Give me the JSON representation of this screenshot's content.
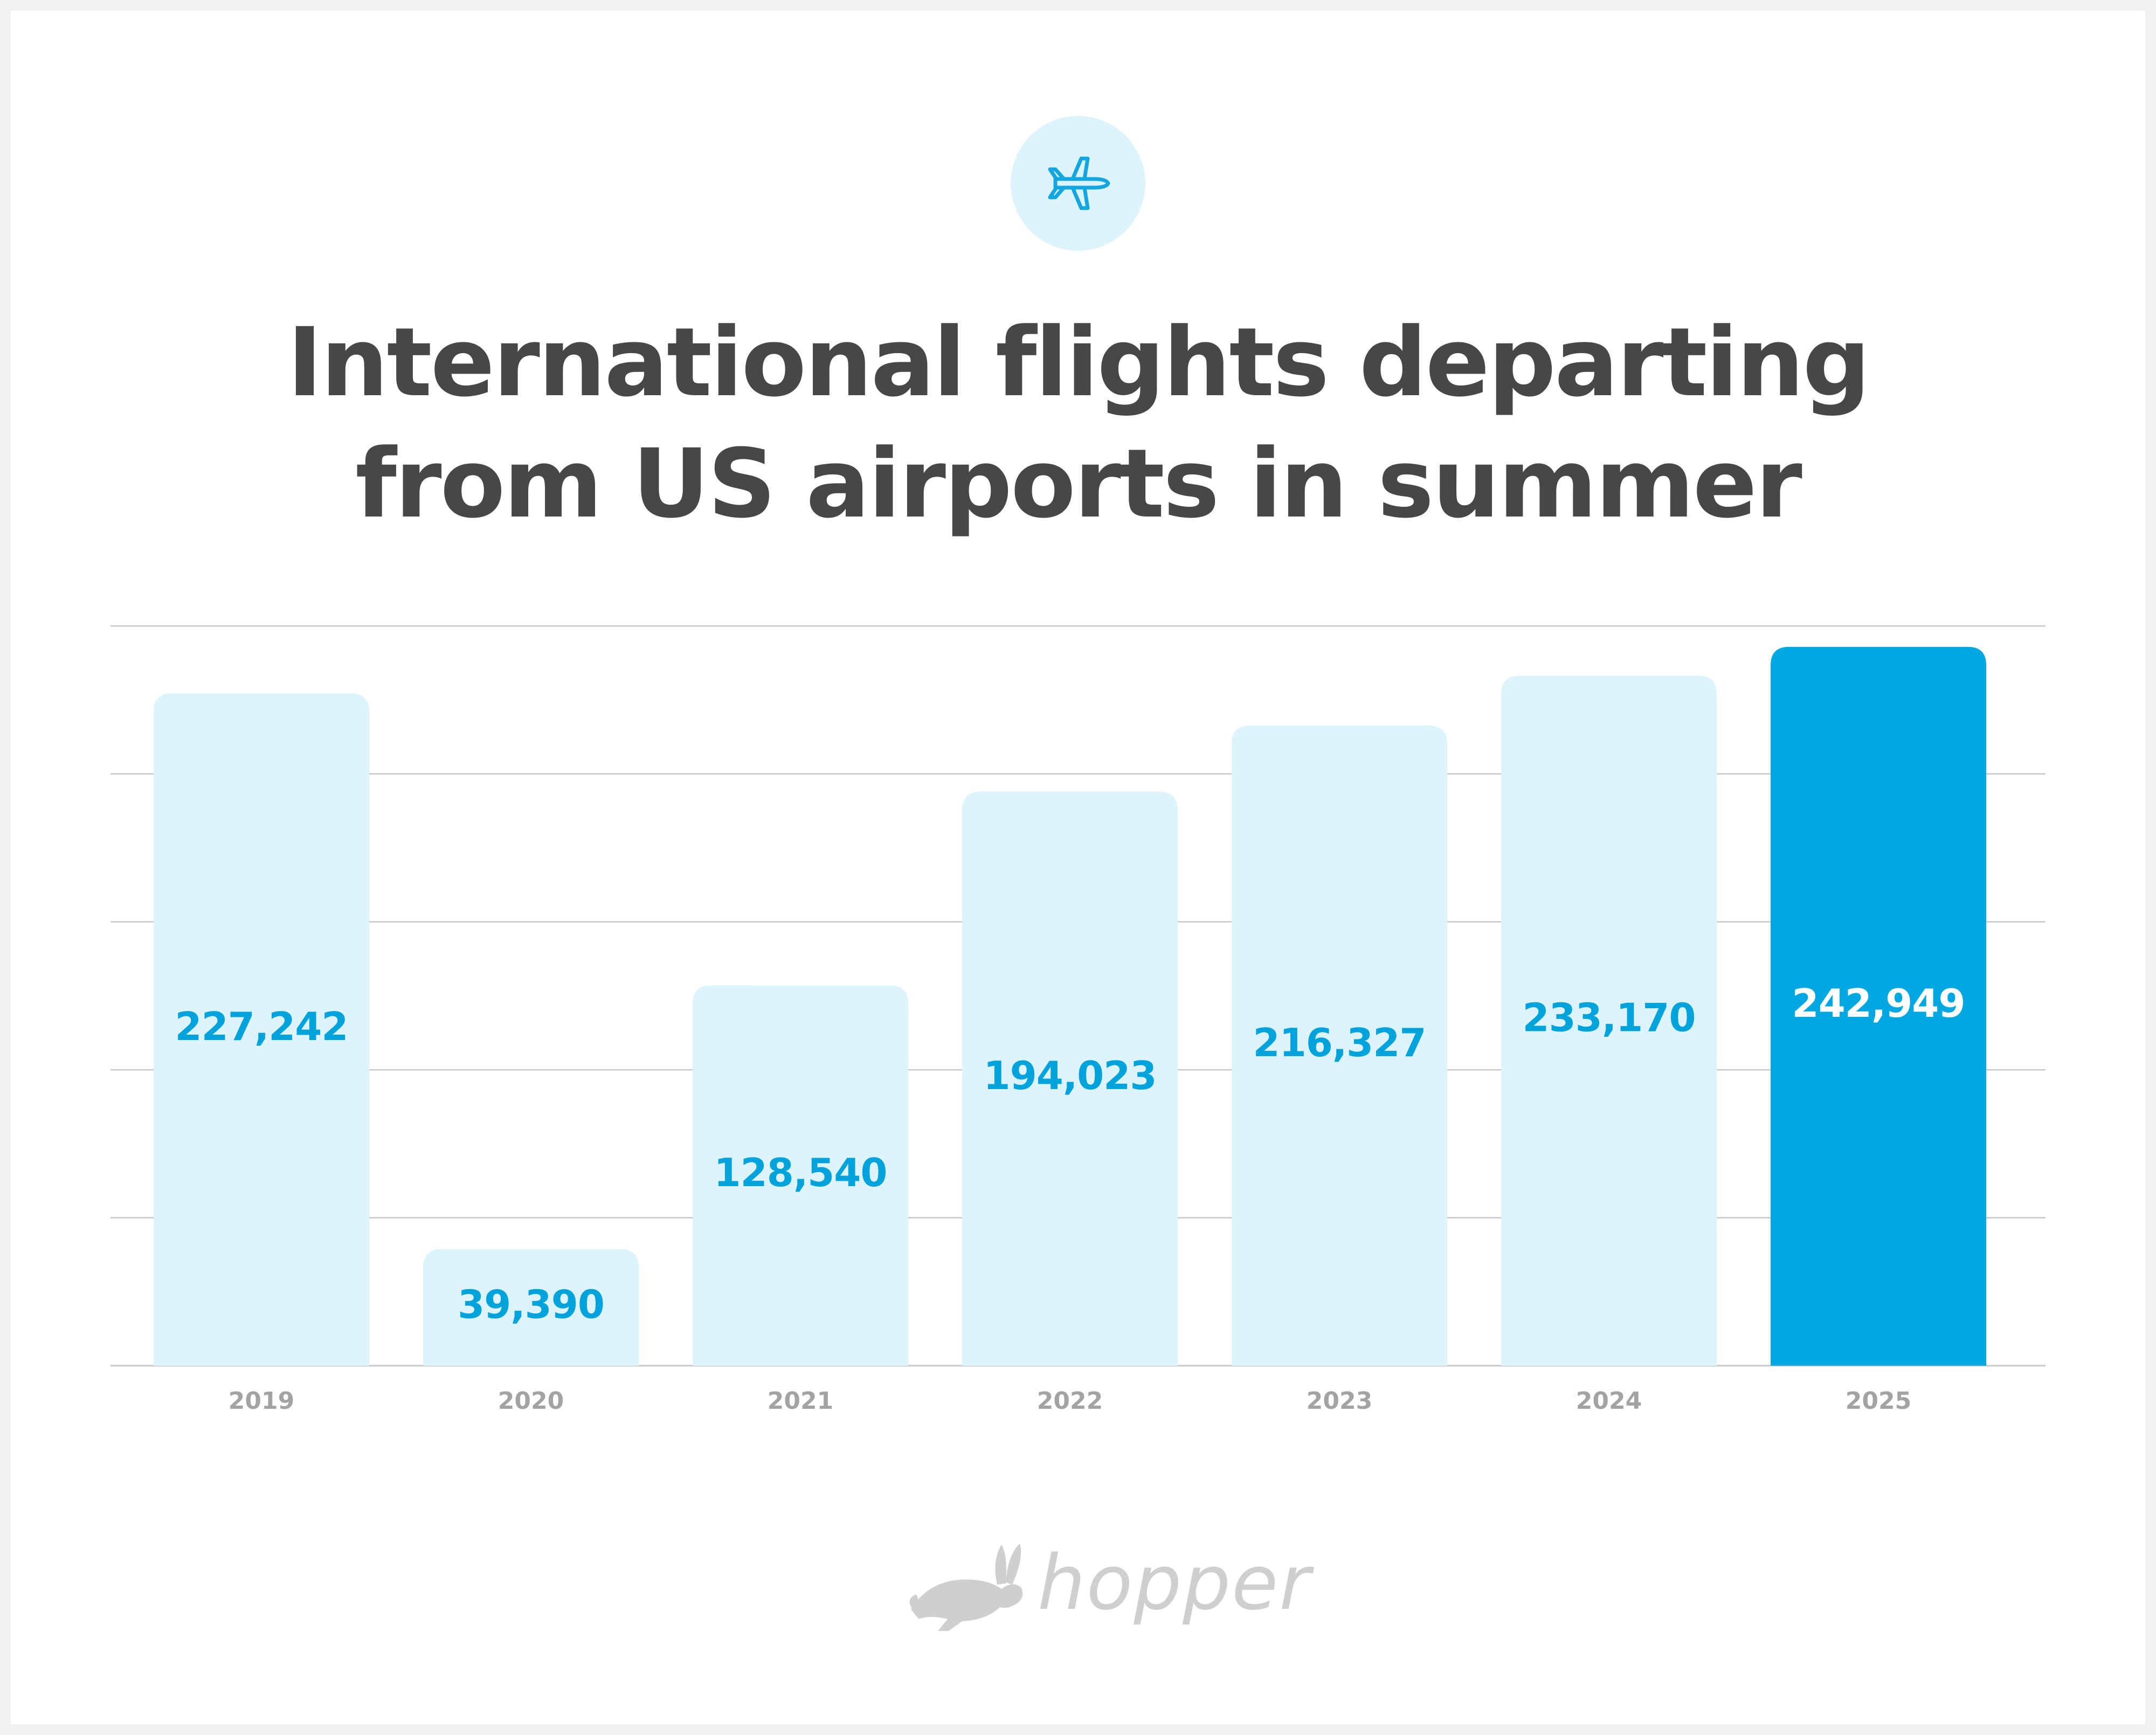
{
  "title": {
    "line1": "International flights departing",
    "line2": "from US airports in summer"
  },
  "header_icon": "airplane-icon",
  "chart_data": {
    "type": "bar",
    "categories": [
      "2019",
      "2020",
      "2021",
      "2022",
      "2023",
      "2024",
      "2025"
    ],
    "values": [
      227242,
      39390,
      128540,
      194023,
      216327,
      233170,
      242949
    ],
    "value_labels": [
      "227,242",
      "39,390",
      "128,540",
      "194,023",
      "216,327",
      "233,170",
      "242,949"
    ],
    "highlighted_category": "2025",
    "ylim": [
      0,
      250000
    ],
    "grid": true,
    "colors": {
      "bar": "#def4fd",
      "bar_highlight": "#00a8e1",
      "label": "#00a3dc",
      "label_highlight": "#ffffff",
      "grid": "#c8c8c8"
    }
  },
  "brand": {
    "logo_icon": "rabbit-icon",
    "name": "hopper"
  }
}
